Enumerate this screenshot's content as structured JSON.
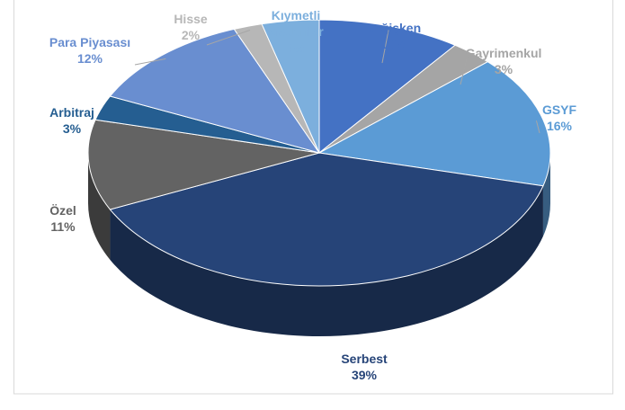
{
  "chart_data": {
    "type": "pie",
    "categories": [
      "Değişken",
      "Gayrimenkul",
      "GSYF",
      "Serbest",
      "Özel",
      "Arbitraj",
      "Para Piyasası",
      "Hisse",
      "Kıymetli Madenler"
    ],
    "values": [
      10,
      3,
      16,
      39,
      11,
      3,
      12,
      2,
      4
    ],
    "value_labels": [
      "10%",
      "3%",
      "16%",
      "39%",
      "11%",
      "3%",
      "12%",
      "2%",
      "4%"
    ],
    "colors": [
      "#4472c4",
      "#a5a5a5",
      "#5b9bd5",
      "#264478",
      "#636363",
      "#255e91",
      "#698ed0",
      "#b7b7b7",
      "#7cafdd"
    ]
  }
}
